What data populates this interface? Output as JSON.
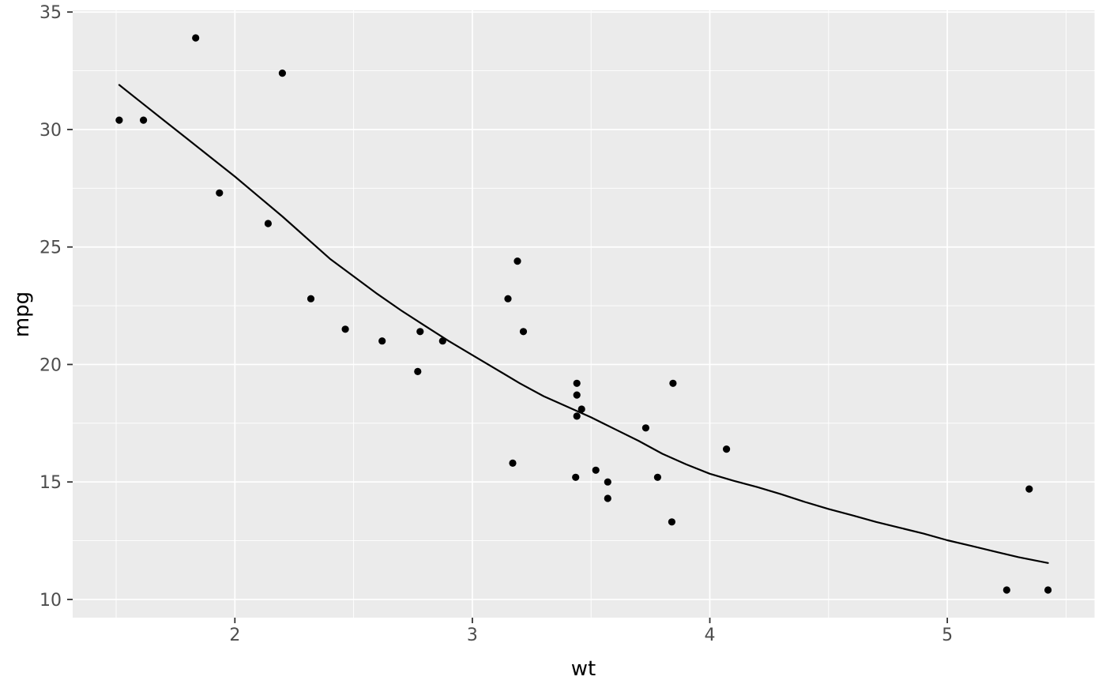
{
  "chart_data": {
    "type": "scatter",
    "title": "",
    "xlabel": "wt",
    "ylabel": "mpg",
    "xlim": [
      1.317,
      5.62
    ],
    "ylim": [
      9.225,
      35.075
    ],
    "grid": "major and minor gridlines, white on gray panel",
    "legend_position": "none",
    "x_axis": {
      "major_ticks": [
        2,
        3,
        4,
        5
      ],
      "major_labels": [
        "2",
        "3",
        "4",
        "5"
      ],
      "minor_ticks": [
        1.5,
        2.5,
        3.5,
        4.5,
        5.5
      ]
    },
    "y_axis": {
      "major_ticks": [
        10,
        15,
        20,
        25,
        30,
        35
      ],
      "major_labels": [
        "10",
        "15",
        "20",
        "25",
        "30",
        "35"
      ],
      "minor_ticks": [
        12.5,
        17.5,
        22.5,
        27.5,
        32.5
      ]
    },
    "series": [
      {
        "name": "observations",
        "type": "points",
        "color": "#000000",
        "point_radius": 4.6,
        "points": [
          [
            2.62,
            21.0
          ],
          [
            2.875,
            21.0
          ],
          [
            2.32,
            22.8
          ],
          [
            3.215,
            21.4
          ],
          [
            3.44,
            18.7
          ],
          [
            3.46,
            18.1
          ],
          [
            3.57,
            14.3
          ],
          [
            3.19,
            24.4
          ],
          [
            3.15,
            22.8
          ],
          [
            3.44,
            19.2
          ],
          [
            3.44,
            17.8
          ],
          [
            4.07,
            16.4
          ],
          [
            3.73,
            17.3
          ],
          [
            3.78,
            15.2
          ],
          [
            5.25,
            10.4
          ],
          [
            5.424,
            10.4
          ],
          [
            5.345,
            14.7
          ],
          [
            2.2,
            32.4
          ],
          [
            1.615,
            30.4
          ],
          [
            1.835,
            33.9
          ],
          [
            2.465,
            21.5
          ],
          [
            3.52,
            15.5
          ],
          [
            3.435,
            15.2
          ],
          [
            3.84,
            13.3
          ],
          [
            3.845,
            19.2
          ],
          [
            1.935,
            27.3
          ],
          [
            2.14,
            26.0
          ],
          [
            1.513,
            30.4
          ],
          [
            3.17,
            15.8
          ],
          [
            2.77,
            19.7
          ],
          [
            3.57,
            15.0
          ],
          [
            2.78,
            21.4
          ]
        ]
      },
      {
        "name": "loess-smooth",
        "type": "line",
        "color": "#000000",
        "line_width": 2.2,
        "points": [
          [
            1.513,
            31.9
          ],
          [
            1.6,
            31.2
          ],
          [
            1.7,
            30.4
          ],
          [
            1.8,
            29.6
          ],
          [
            1.9,
            28.8
          ],
          [
            2.0,
            28.0
          ],
          [
            2.1,
            27.15
          ],
          [
            2.2,
            26.3
          ],
          [
            2.3,
            25.4
          ],
          [
            2.4,
            24.5
          ],
          [
            2.5,
            23.75
          ],
          [
            2.6,
            23.0
          ],
          [
            2.7,
            22.3
          ],
          [
            2.8,
            21.65
          ],
          [
            2.9,
            21.0
          ],
          [
            3.0,
            20.4
          ],
          [
            3.1,
            19.8
          ],
          [
            3.2,
            19.2
          ],
          [
            3.3,
            18.65
          ],
          [
            3.4,
            18.2
          ],
          [
            3.5,
            17.75
          ],
          [
            3.6,
            17.25
          ],
          [
            3.7,
            16.75
          ],
          [
            3.8,
            16.2
          ],
          [
            3.9,
            15.75
          ],
          [
            4.0,
            15.35
          ],
          [
            4.1,
            15.05
          ],
          [
            4.2,
            14.78
          ],
          [
            4.3,
            14.48
          ],
          [
            4.4,
            14.15
          ],
          [
            4.5,
            13.85
          ],
          [
            4.6,
            13.58
          ],
          [
            4.7,
            13.3
          ],
          [
            4.8,
            13.05
          ],
          [
            4.9,
            12.8
          ],
          [
            5.0,
            12.52
          ],
          [
            5.1,
            12.28
          ],
          [
            5.2,
            12.04
          ],
          [
            5.3,
            11.8
          ],
          [
            5.424,
            11.55
          ]
        ]
      }
    ]
  },
  "theme": {
    "outer_background": "#FFFFFF",
    "panel_background": "#EBEBEB",
    "grid_color": "#FFFFFF",
    "tick_mark_color": "#333333",
    "tick_label_color": "#4D4D4D",
    "axis_title_color": "#000000",
    "point_color": "#000000",
    "smooth_line_color": "#000000"
  }
}
